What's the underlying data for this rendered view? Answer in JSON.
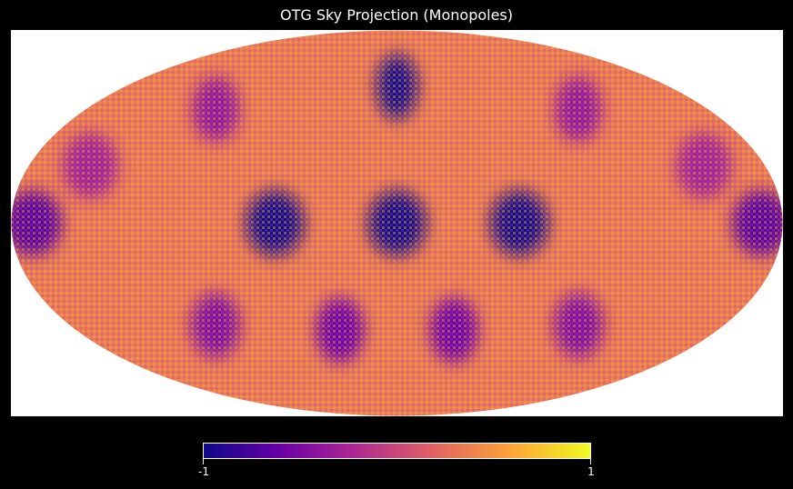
{
  "chart_data": {
    "type": "heatmap",
    "title": "OTG Sky Projection (Monopoles)",
    "projection": "mollweide",
    "value_range": [
      -1,
      1
    ],
    "colormap": "plasma",
    "colormap_stops": [
      "#0d0887",
      "#6a00a8",
      "#b12a90",
      "#e16462",
      "#fca636",
      "#f0f921"
    ],
    "background_value": 0.35,
    "monopoles": [
      {
        "lon": 0,
        "lat": 0,
        "value": -1
      },
      {
        "lon": -57,
        "lat": 0,
        "value": -1
      },
      {
        "lon": 57,
        "lat": 0,
        "value": -1
      },
      {
        "lon": -170,
        "lat": 0,
        "value": -0.7
      },
      {
        "lon": 170,
        "lat": 0,
        "value": -0.7
      },
      {
        "lon": 0,
        "lat": 55,
        "value": -1
      },
      {
        "lon": -105,
        "lat": 45,
        "value": -0.4
      },
      {
        "lon": 105,
        "lat": 45,
        "value": -0.4
      },
      {
        "lon": -150,
        "lat": 22,
        "value": -0.3
      },
      {
        "lon": 150,
        "lat": 22,
        "value": -0.3
      },
      {
        "lon": -32,
        "lat": -42,
        "value": -0.6
      },
      {
        "lon": 32,
        "lat": -42,
        "value": -0.6
      },
      {
        "lon": -100,
        "lat": -40,
        "value": -0.5
      },
      {
        "lon": 100,
        "lat": -40,
        "value": -0.5
      }
    ],
    "colorbar": {
      "min_label": "-1",
      "max_label": "1"
    }
  }
}
